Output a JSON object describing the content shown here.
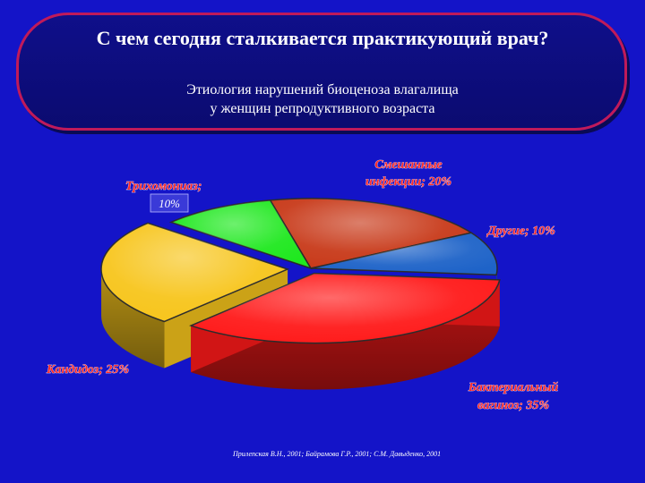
{
  "header": {
    "title": "С чем сегодня сталкивается практикующий врач?",
    "subtitle_line1": "Этиология нарушений биоценоза влагалища",
    "subtitle_line2": "у женщин репродуктивного возраста"
  },
  "chart_data": {
    "type": "pie",
    "slices": [
      {
        "label": "Бактериальный вагиноз; 35%",
        "value": 35,
        "color": "#ff1a1a"
      },
      {
        "label": "Кандидоз; 25%",
        "value": 25,
        "color": "#f7c51c"
      },
      {
        "label": "Трихомониаз; 10%",
        "value": 10,
        "color": "#1fe81f"
      },
      {
        "label": "Смешанные инфекции; 20%",
        "value": 20,
        "color": "#c83a1a"
      },
      {
        "label": "Другие; 10%",
        "value": 10,
        "color": "#1e63c8"
      }
    ],
    "labels_text": {
      "trich_name": "Трихомониаз;",
      "trich_pct": "10%",
      "mixed_line1": "Смешанные",
      "mixed_line2": "инфекции; 20%",
      "other": "Другие; 10%",
      "candid": "Кандидоз; 25%",
      "bv_line1": "Бактериальный",
      "bv_line2": "вагиноз; 35%"
    }
  },
  "source": "Прилепская В.Н., 2001; Байрамова Г.Р., 2001; С.М. Давыденко, 2001",
  "colors": {
    "background": "#1414c8",
    "header_border": "#c01a5a",
    "label_text": "#ff2a2a"
  }
}
